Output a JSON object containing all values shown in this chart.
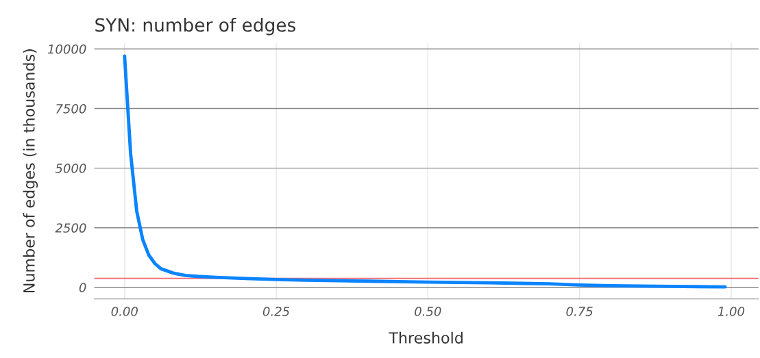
{
  "chart_data": {
    "type": "line",
    "title": "SYN: number of edges",
    "xlabel": "Threshold",
    "ylabel": "Number of edges (in thousands)",
    "x": [
      0,
      0.01,
      0.02,
      0.03,
      0.04,
      0.05,
      0.06,
      0.08,
      0.1,
      0.12,
      0.15,
      0.2,
      0.25,
      0.3,
      0.4,
      0.5,
      0.6,
      0.7,
      0.75,
      0.8,
      0.9,
      0.99
    ],
    "series": [
      {
        "color": "#0a84ff",
        "values": [
          9700,
          5600,
          3200,
          2000,
          1350,
          1000,
          780,
          600,
          500,
          460,
          420,
          370,
          330,
          300,
          260,
          220,
          190,
          150,
          100,
          70,
          40,
          20
        ]
      }
    ],
    "xlim": [
      -0.05,
      1.045
    ],
    "ylim": [
      -485,
      10250
    ],
    "xticks": [
      {
        "value": 0,
        "label": "0.00"
      },
      {
        "value": 0.25,
        "label": "0.25"
      },
      {
        "value": 0.5,
        "label": "0.50"
      },
      {
        "value": 0.75,
        "label": "0.75"
      },
      {
        "value": 1,
        "label": "1.00"
      }
    ],
    "yticks": [
      0,
      2500,
      5000,
      7500,
      10000
    ],
    "ref_lines": [
      {
        "axis": "y",
        "value": 375,
        "color": "#f0707a"
      }
    ],
    "grid": true,
    "legend": false,
    "marker": "none",
    "line_style": "solid"
  }
}
